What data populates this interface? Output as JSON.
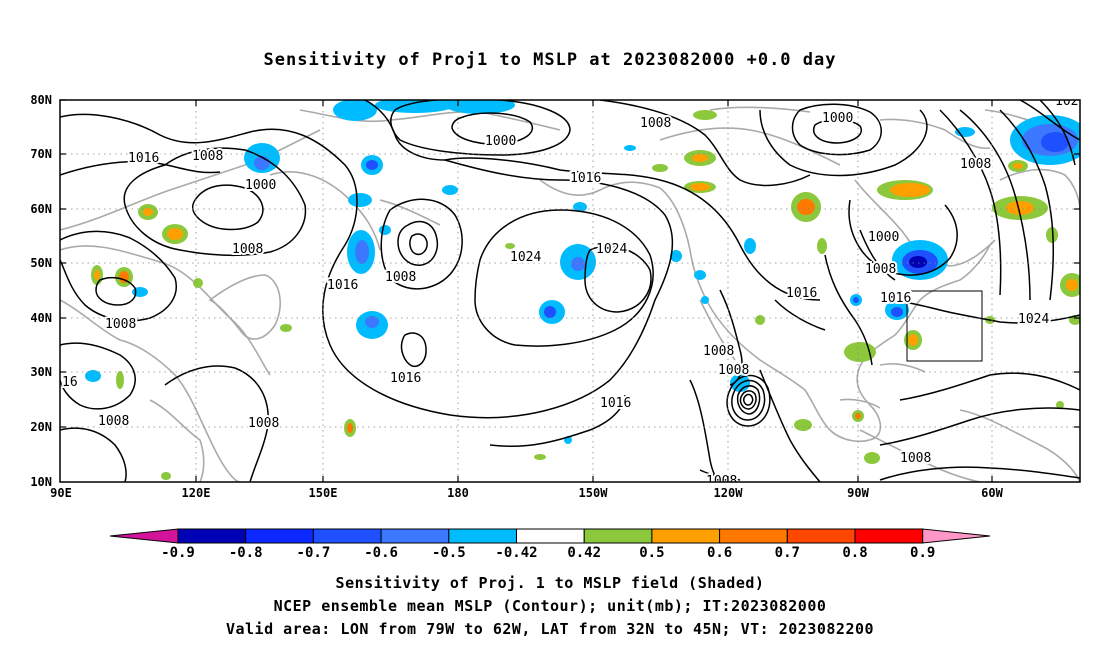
{
  "title": "Sensitivity of Proj1 to MSLP at 2023082000 +0.0 day",
  "map": {
    "lat_labels": [
      "80N",
      "70N",
      "60N",
      "50N",
      "40N",
      "30N",
      "20N",
      "10N"
    ],
    "lon_labels": [
      "90E",
      "120E",
      "150E",
      "180",
      "150W",
      "120W",
      "90W",
      "60W"
    ],
    "valid_box": {
      "lon_range": [
        "79W",
        "62W"
      ],
      "lat_range": [
        "32N",
        "45N"
      ]
    }
  },
  "contour_labels": [
    {
      "id": "c1",
      "text": "1016"
    },
    {
      "id": "c2",
      "text": "1008"
    },
    {
      "id": "c3",
      "text": "1000"
    },
    {
      "id": "c4",
      "text": "1000"
    },
    {
      "id": "c5",
      "text": "1008"
    },
    {
      "id": "c6",
      "text": "1000"
    },
    {
      "id": "c7",
      "text": "1016"
    },
    {
      "id": "c8",
      "text": "1008"
    },
    {
      "id": "c9",
      "text": "1008"
    },
    {
      "id": "c10",
      "text": "1024"
    },
    {
      "id": "c11",
      "text": "1024"
    },
    {
      "id": "c12",
      "text": "1008"
    },
    {
      "id": "c13",
      "text": "1016"
    },
    {
      "id": "c14",
      "text": "1000"
    },
    {
      "id": "c15",
      "text": "1008"
    },
    {
      "id": "c16",
      "text": "1016"
    },
    {
      "id": "c17",
      "text": "1024"
    },
    {
      "id": "c18",
      "text": "1008"
    },
    {
      "id": "c19",
      "text": "1016"
    },
    {
      "id": "c20",
      "text": "1008"
    },
    {
      "id": "c21",
      "text": "1008"
    },
    {
      "id": "c22",
      "text": "1016"
    },
    {
      "id": "c23",
      "text": "16"
    },
    {
      "id": "c24",
      "text": "1008"
    },
    {
      "id": "c25",
      "text": "1008"
    },
    {
      "id": "c26",
      "text": "1008"
    },
    {
      "id": "c27",
      "text": "1008"
    },
    {
      "id": "c28",
      "text": "1016"
    },
    {
      "id": "c29",
      "text": "102"
    }
  ],
  "colorbar": {
    "labels": [
      "-0.9",
      "-0.8",
      "-0.7",
      "-0.6",
      "-0.5",
      "-0.42",
      "0.42",
      "0.5",
      "0.6",
      "0.7",
      "0.8",
      "0.9"
    ],
    "colors": [
      "#0000b4",
      "#0a28ff",
      "#1e50ff",
      "#3c78ff",
      "#00bcff",
      "#ffffff",
      "#8cc83c",
      "#ffa000",
      "#ff7800",
      "#ff4600",
      "#ff0000"
    ],
    "end_low_color": "#d2149b",
    "end_high_color": "#ff96c8"
  },
  "captions": {
    "line1": "Sensitivity of Proj. 1 to MSLP field (Shaded)",
    "line2": "NCEP ensemble mean MSLP (Contour); unit(mb); IT:2023082000",
    "line3": "Valid area: LON from 79W to 62W, LAT from 32N to 45N; VT: 2023082200"
  }
}
